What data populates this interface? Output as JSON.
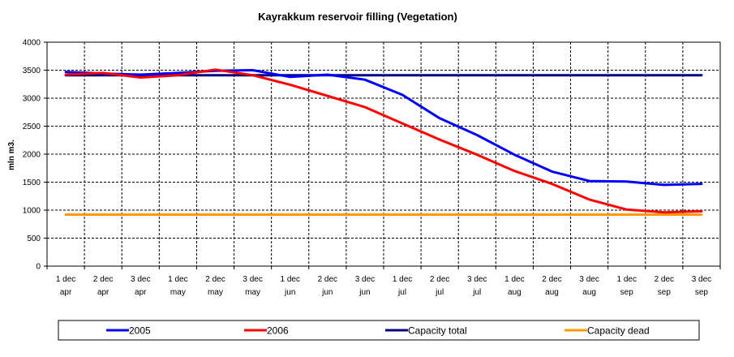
{
  "chart_data": {
    "type": "line",
    "title": "Kayrakkum reservoir filling  (Vegetation)",
    "xlabel": "",
    "ylabel": "mln m3.",
    "ylim": [
      0,
      4000
    ],
    "yticks": [
      0,
      500,
      1000,
      1500,
      2000,
      2500,
      3000,
      3500,
      4000
    ],
    "grid": true,
    "legend_position": "bottom",
    "categories": [
      [
        "1 dec",
        "apr"
      ],
      [
        "2 dec",
        "apr"
      ],
      [
        "3 dec",
        "apr"
      ],
      [
        "1 dec",
        "may"
      ],
      [
        "2 dec",
        "may"
      ],
      [
        "3 dec",
        "may"
      ],
      [
        "1 dec",
        "jun"
      ],
      [
        "2 dec",
        "jun"
      ],
      [
        "3 dec",
        "jun"
      ],
      [
        "1 dec",
        "jul"
      ],
      [
        "2 dec",
        "jul"
      ],
      [
        "3 dec",
        "jul"
      ],
      [
        "1 dec",
        "aug"
      ],
      [
        "2 dec",
        "aug"
      ],
      [
        "3 dec",
        "aug"
      ],
      [
        "1 dec",
        "sep"
      ],
      [
        "2 dec",
        "sep"
      ],
      [
        "3 dec",
        "sep"
      ]
    ],
    "series": [
      {
        "name": "2005",
        "color": "#0000ff",
        "values": [
          3470,
          3440,
          3420,
          3450,
          3490,
          3500,
          3380,
          3420,
          3330,
          3060,
          2640,
          2340,
          1990,
          1690,
          1520,
          1510,
          1450,
          1470
        ]
      },
      {
        "name": "2006",
        "color": "#ff0000",
        "values": [
          3420,
          3450,
          3370,
          3410,
          3510,
          3410,
          3240,
          3040,
          2840,
          2550,
          2260,
          1990,
          1700,
          1470,
          1190,
          1010,
          960,
          980
        ]
      },
      {
        "name": "Capacity total",
        "color": "#000080",
        "values": [
          3410,
          3410,
          3410,
          3410,
          3410,
          3410,
          3410,
          3410,
          3410,
          3410,
          3410,
          3410,
          3410,
          3410,
          3410,
          3410,
          3410,
          3410
        ]
      },
      {
        "name": "Capacity dead",
        "color": "#ff9900",
        "values": [
          920,
          920,
          920,
          920,
          920,
          920,
          920,
          920,
          920,
          920,
          920,
          920,
          920,
          920,
          920,
          920,
          920,
          920
        ]
      }
    ]
  }
}
